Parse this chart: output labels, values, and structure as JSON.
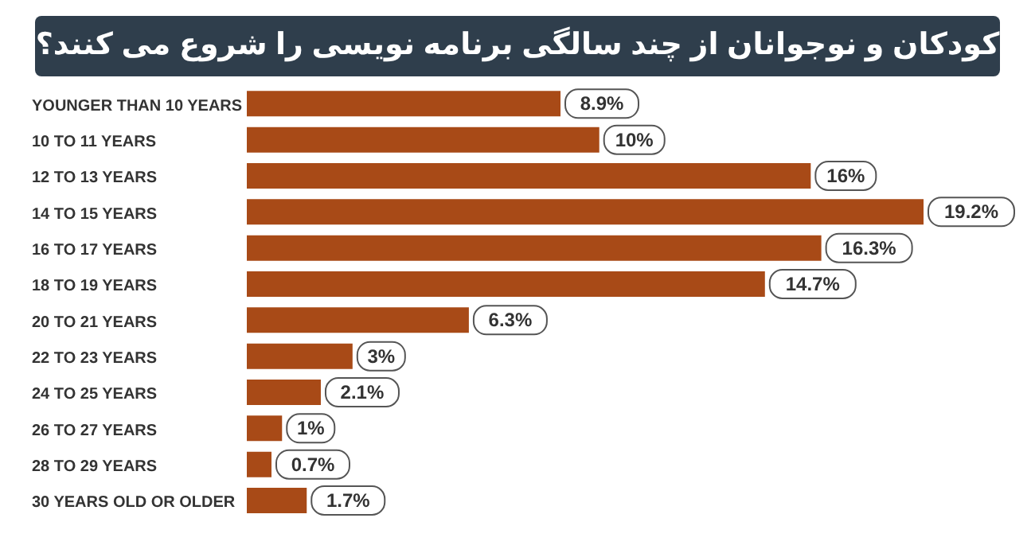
{
  "chart_data": {
    "type": "bar",
    "orientation": "horizontal",
    "title": "کودکان و نوجوانان از چند سالگی برنامه نویسی را شروع می کنند؟",
    "categories": [
      "YOUNGER THAN 10 YEARS",
      "10 TO 11 YEARS",
      "12 TO 13 YEARS",
      "14 TO 15 YEARS",
      "16 TO 17 YEARS",
      "18 TO 19 YEARS",
      "20 TO 21 YEARS",
      "22 TO 23 YEARS",
      "24 TO 25 YEARS",
      "26 TO 27 YEARS",
      "28 TO 29 YEARS",
      "30 YEARS OLD OR OLDER"
    ],
    "values": [
      8.9,
      10,
      16,
      19.2,
      16.3,
      14.7,
      6.3,
      3,
      2.1,
      1,
      0.7,
      1.7
    ],
    "value_labels": [
      "8.9%",
      "10%",
      "16%",
      "19.2%",
      "16.3%",
      "14.7%",
      "6.3%",
      "3%",
      "2.1%",
      "1%",
      "0.7%",
      "1.7%"
    ],
    "color": "#a84a17"
  }
}
